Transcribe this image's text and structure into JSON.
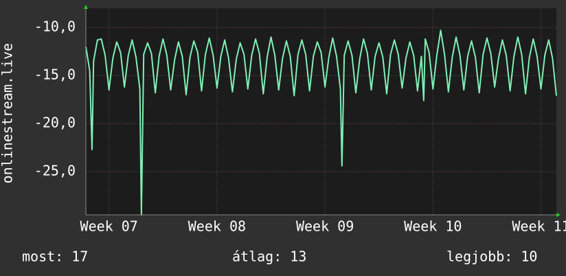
{
  "chart_data": {
    "type": "line",
    "y_label": "onlinestream.live",
    "x": [
      0,
      0.25,
      0.4,
      0.5,
      0.75,
      1,
      1.25,
      1.5,
      1.75,
      2,
      2.25,
      2.5,
      2.75,
      3,
      3.25,
      3.5,
      3.6,
      3.75,
      4,
      4.25,
      4.5,
      4.75,
      5,
      5.25,
      5.5,
      5.75,
      6,
      6.25,
      6.5,
      6.75,
      7,
      7.25,
      7.5,
      7.75,
      8,
      8.25,
      8.5,
      8.75,
      9,
      9.25,
      9.5,
      9.75,
      10,
      10.25,
      10.5,
      10.75,
      11,
      11.25,
      11.5,
      11.75,
      12,
      12.25,
      12.5,
      12.75,
      13,
      13.25,
      13.5,
      13.75,
      14,
      14.25,
      14.5,
      14.75,
      15,
      15.25,
      15.5,
      15.75,
      16,
      16.25,
      16.5,
      16.6,
      16.75,
      17,
      17.25,
      17.5,
      17.75,
      18,
      18.25,
      18.5,
      18.75,
      19,
      19.25,
      19.5,
      19.75,
      20,
      20.25,
      20.5,
      20.75,
      21,
      21.25,
      21.5,
      21.75,
      21.9,
      22,
      22.25,
      22.5,
      22.75,
      23,
      23.25,
      23.5,
      23.75,
      24,
      24.25,
      24.5,
      24.75,
      25,
      25.25,
      25.5,
      25.75,
      26,
      26.25,
      26.5,
      26.75,
      27,
      27.25,
      27.5,
      27.75,
      28,
      28.25,
      28.5,
      28.75,
      29,
      29.25,
      29.5,
      29.75,
      30,
      30.25,
      30.5
    ],
    "values": [
      -12,
      -14.5,
      -22.7,
      -13.5,
      -11.3,
      -11.2,
      -12.9,
      -16.5,
      -13.2,
      -11.5,
      -12.6,
      -16.2,
      -12.9,
      -11.3,
      -13.1,
      -16.4,
      -29.5,
      -12.8,
      -11.6,
      -12.7,
      -16.8,
      -13.0,
      -11.2,
      -12.9,
      -16.5,
      -13.4,
      -11.5,
      -13.0,
      -17.0,
      -13.1,
      -11.4,
      -12.6,
      -16.6,
      -12.8,
      -11.1,
      -12.9,
      -16.3,
      -13.0,
      -11.3,
      -13.2,
      -16.7,
      -13.3,
      -11.6,
      -12.8,
      -16.4,
      -12.9,
      -11.2,
      -12.7,
      -16.9,
      -13.1,
      -11.0,
      -12.9,
      -16.5,
      -13.2,
      -11.4,
      -13.0,
      -17.1,
      -12.8,
      -11.3,
      -12.8,
      -16.6,
      -13.0,
      -11.5,
      -12.6,
      -16.2,
      -13.1,
      -11.1,
      -13.0,
      -16.4,
      -24.4,
      -12.9,
      -11.4,
      -12.9,
      -16.8,
      -13.3,
      -11.2,
      -12.7,
      -16.5,
      -13.0,
      -11.6,
      -13.1,
      -16.9,
      -12.8,
      -11.3,
      -12.8,
      -16.3,
      -13.2,
      -11.5,
      -12.9,
      -16.6,
      -13.0,
      -17.6,
      -11.2,
      -12.6,
      -16.4,
      -12.9,
      -10.3,
      -12.8,
      -16.7,
      -13.1,
      -11.0,
      -12.9,
      -16.5,
      -13.0,
      -11.4,
      -13.1,
      -16.8,
      -12.8,
      -11.1,
      -12.7,
      -16.2,
      -13.2,
      -11.3,
      -12.9,
      -16.6,
      -13.0,
      -11.0,
      -12.8,
      -16.9,
      -13.1,
      -11.2,
      -13.0,
      -16.4,
      -12.9,
      -11.3,
      -13.2,
      -17.1
    ],
    "color": "#7ff0b4",
    "xlim": [
      0,
      30.5
    ],
    "xticks": [
      {
        "value": 1.5,
        "label": "Week 07"
      },
      {
        "value": 8.5,
        "label": "Week 08"
      },
      {
        "value": 15.5,
        "label": "Week 09"
      },
      {
        "value": 22.5,
        "label": "Week 10"
      },
      {
        "value": 29.5,
        "label": "Week 11"
      }
    ],
    "ylim": [
      -29.5,
      -8
    ],
    "yticks": [
      {
        "value": -10,
        "label": "-10,0"
      },
      {
        "value": -15,
        "label": "-15,0"
      },
      {
        "value": -20,
        "label": "-20,0"
      },
      {
        "value": -25,
        "label": "-25,0"
      }
    ],
    "grid": true,
    "stats": [
      "most: 17",
      "átlag: 13",
      "legjobb: 10"
    ]
  }
}
